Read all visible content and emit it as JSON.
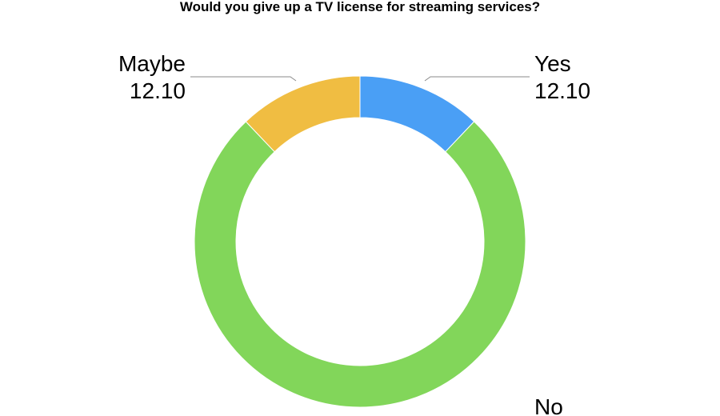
{
  "chart_data": {
    "type": "pie",
    "style": "donut",
    "title": "Would you give up a TV license for streaming services?",
    "series": [
      {
        "name": "Yes",
        "value": 12.1,
        "value_label": "12.10",
        "color": "#4a9ff5"
      },
      {
        "name": "No",
        "value": 75.8,
        "value_label": "",
        "color": "#82d65a"
      },
      {
        "name": "Maybe",
        "value": 12.1,
        "value_label": "12.10",
        "color": "#f0bd42"
      }
    ],
    "legend": "none"
  }
}
